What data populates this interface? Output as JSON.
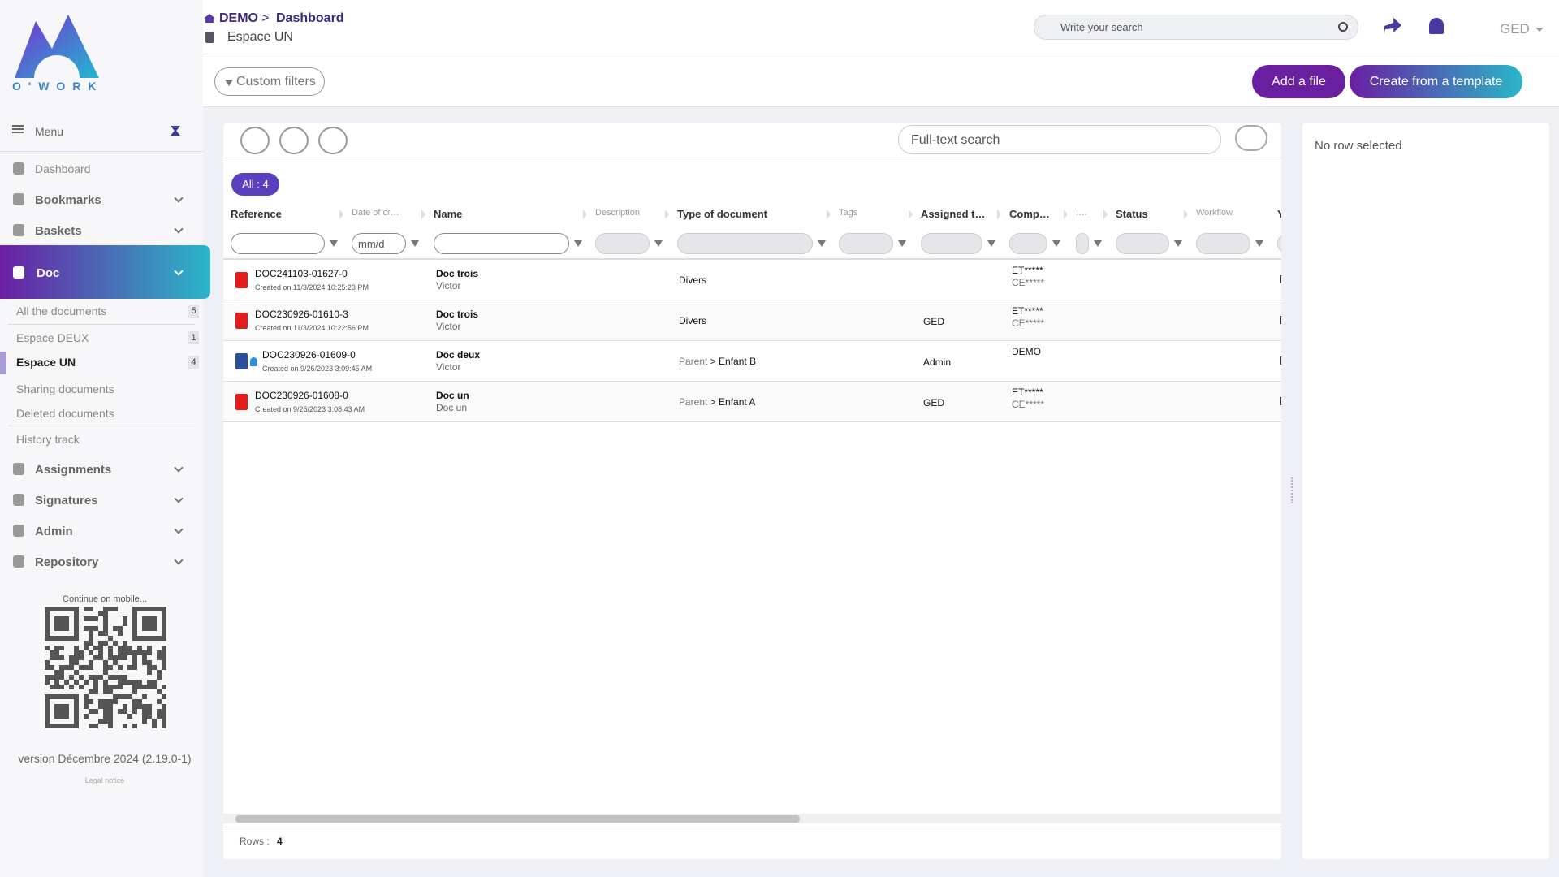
{
  "logo": "O'WORK",
  "header": {
    "breadcrumb": [
      "DEMO",
      "Dashboard"
    ],
    "breadcrumb_separator": ">",
    "space": "Espace UN",
    "search_placeholder": "Write your search",
    "user": "GED"
  },
  "toolbar": {
    "custom_filters": "Custom filters",
    "add_file": "Add a file",
    "create_template": "Create from a template"
  },
  "sidebar": {
    "menu": "Menu",
    "items": [
      "Dashboard",
      "Bookmarks",
      "Baskets",
      "Doc"
    ],
    "doc_items": [
      {
        "label": "All the documents",
        "count": 5
      },
      {
        "label": "Espace DEUX",
        "count": 1
      },
      {
        "label": "Espace UN",
        "count": 4
      },
      {
        "label": "Sharing documents"
      },
      {
        "label": "Deleted documents"
      },
      {
        "label": "History track"
      }
    ],
    "more_items": [
      "Assignments",
      "Signatures",
      "Admin",
      "Repository"
    ],
    "mobile": "Continue on mobile...",
    "version": "version Décembre 2024 (2.19.0-1)",
    "legal": "Legal notice"
  },
  "table": {
    "search_placeholder": "Full-text search",
    "all_badge": "All : 4",
    "columns": [
      "Reference",
      "Date of cr…",
      "Name",
      "Description",
      "Type of document",
      "Tags",
      "Assigned t…",
      "Comp…",
      "I…",
      "Status",
      "Workflow",
      "Y"
    ],
    "date_placeholder": "mm/d",
    "path_separator": ">",
    "rows": [
      {
        "reference": "DOC241103-01627-0",
        "created": "Created on 11/3/2024 10:25:23 PM",
        "name": "Doc trois",
        "author": "Victor",
        "type": [
          "Divers"
        ],
        "company": [
          "ET*****",
          "CE*****"
        ]
      },
      {
        "reference": "DOC230926-01610-3",
        "created": "Created on 11/3/2024 10:22:56 PM",
        "name": "Doc trois",
        "author": "Victor",
        "type": [
          "Divers"
        ],
        "assigned": "GED",
        "company": [
          "ET*****",
          "CE*****"
        ]
      },
      {
        "reference": "DOC230926-01609-0",
        "created": "Created on 9/26/2023 3:09:45 AM",
        "name": "Doc deux",
        "author": "Victor",
        "type": [
          "Parent",
          "Enfant B"
        ],
        "assigned": "Admin",
        "company": [
          "DEMO"
        ]
      },
      {
        "reference": "DOC230926-01608-0",
        "created": "Created on 9/26/2023 3:08:43 AM",
        "name": "Doc un",
        "author": "Doc un",
        "type": [
          "Parent",
          "Enfant A"
        ],
        "assigned": "GED",
        "company": [
          "ET*****",
          "CE*****"
        ]
      }
    ],
    "rows_label": "Rows :",
    "rows_count": 4
  },
  "detail": {
    "empty": "No row selected"
  }
}
